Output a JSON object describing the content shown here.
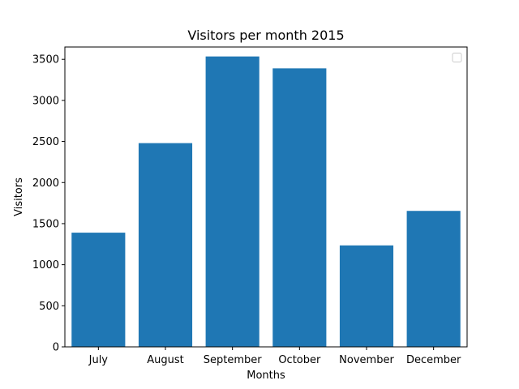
{
  "chart_data": {
    "type": "bar",
    "title": "Visitors per month 2015",
    "xlabel": "Months",
    "ylabel": "Visitors",
    "categories": [
      "July",
      "August",
      "September",
      "October",
      "November",
      "December"
    ],
    "values": [
      1390,
      2480,
      3535,
      3390,
      1235,
      1655
    ],
    "ylim": [
      0,
      3650
    ],
    "yticks": [
      0,
      500,
      1000,
      1500,
      2000,
      2500,
      3000,
      3500
    ],
    "bar_color": "#1f77b4",
    "legend": {
      "placement": "top-right",
      "entries": []
    },
    "grid": false
  }
}
